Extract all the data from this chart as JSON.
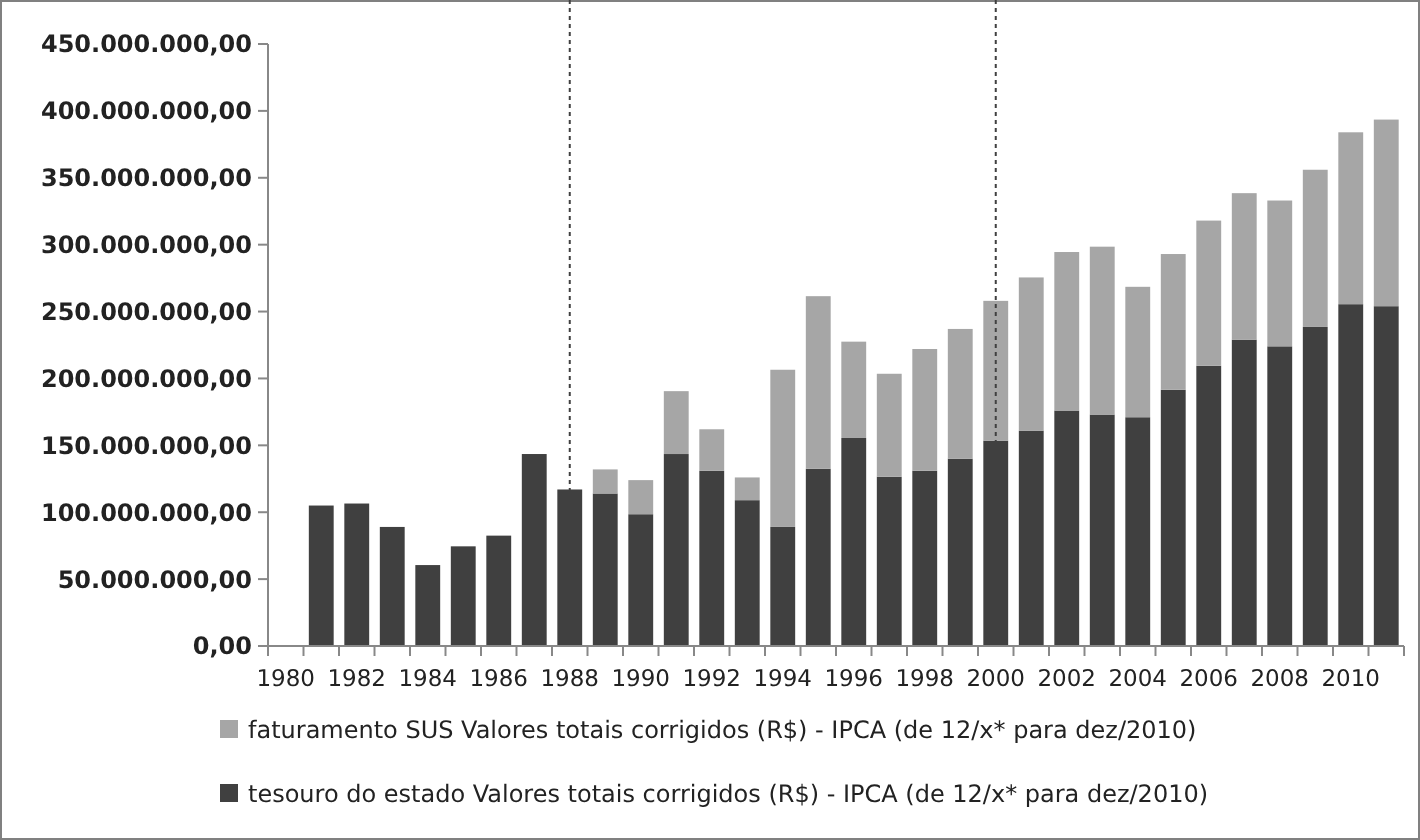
{
  "chart_data": {
    "type": "bar",
    "stacked": true,
    "categories": [
      "1980",
      null,
      "1982",
      null,
      "1984",
      null,
      "1986",
      null,
      "1988",
      null,
      "1990",
      null,
      "1992",
      null,
      "1994",
      null,
      "1996",
      null,
      "1998",
      null,
      "2000",
      null,
      "2002",
      null,
      "2004",
      null,
      "2006",
      null,
      "2008",
      null,
      "2010",
      null
    ],
    "series": [
      {
        "name": "tesouro do estado Valores totais corrigidos (R$) - IPCA (de 12/x* para dez/2010)",
        "color": "#404040",
        "values": [
          null,
          105000000,
          106500000,
          89000000,
          60500000,
          74500000,
          82500000,
          143500000,
          117000000,
          114000000,
          98500000,
          143500000,
          131000000,
          109000000,
          89000000,
          132500000,
          155500000,
          126500000,
          131000000,
          140000000,
          153500000,
          161000000,
          176000000,
          173000000,
          171000000,
          191500000,
          209500000,
          229000000,
          224000000,
          238500000,
          255500000,
          254000000
        ]
      },
      {
        "name": "faturamento SUS Valores totais corrigidos (R$) - IPCA (de 12/x* para dez/2010)",
        "color": "#a6a6a6",
        "values": [
          null,
          null,
          null,
          null,
          null,
          null,
          null,
          null,
          null,
          18000000,
          25500000,
          47000000,
          31000000,
          17000000,
          117500000,
          129000000,
          72000000,
          77000000,
          91000000,
          97000000,
          104500000,
          114500000,
          118500000,
          125500000,
          97500000,
          101500000,
          108500000,
          109500000,
          109000000,
          117500000,
          128500000,
          139500000
        ]
      }
    ],
    "ylim": [
      0,
      450000000
    ],
    "yticks": [
      {
        "value": 0,
        "label": "0,00"
      },
      {
        "value": 50000000,
        "label": "50.000.000,00"
      },
      {
        "value": 100000000,
        "label": "100.000.000,00"
      },
      {
        "value": 150000000,
        "label": "150.000.000,00"
      },
      {
        "value": 200000000,
        "label": "200.000.000,00"
      },
      {
        "value": 250000000,
        "label": "250.000.000,00"
      },
      {
        "value": 300000000,
        "label": "300.000.000,00"
      },
      {
        "value": 350000000,
        "label": "350.000.000,00"
      },
      {
        "value": 400000000,
        "label": "400.000.000,00"
      },
      {
        "value": 450000000,
        "label": "450.000.000,00"
      }
    ],
    "ref_lines": [
      {
        "axis": "x",
        "value": "1988",
        "color": "#404040",
        "line_style": "dotted"
      },
      {
        "axis": "x",
        "value": "2000",
        "color": "#404040",
        "line_style": "dotted"
      }
    ],
    "legend": "bottom",
    "grid": false
  }
}
